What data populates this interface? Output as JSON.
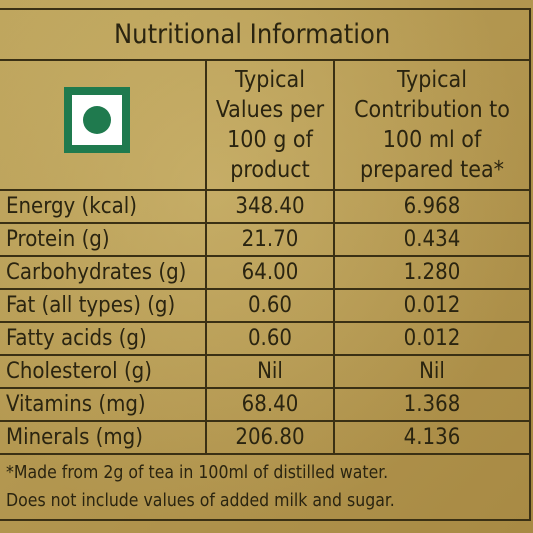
{
  "title": "Nutritional Information",
  "columns": {
    "typical_values": "Typical Values per 100 g of product",
    "typical_contribution": "Typical Contribution to 100 ml of prepared tea*"
  },
  "veg_mark_icon": "vegetarian-mark-icon",
  "colors": {
    "veg_green": "#1f7a4e",
    "background_gold": "#b59a52",
    "ink": "#2a2410"
  },
  "rows": [
    {
      "label": "Energy (kcal)",
      "per_100g": "348.40",
      "per_100ml": "6.968"
    },
    {
      "label": "Protein (g)",
      "per_100g": "21.70",
      "per_100ml": "0.434"
    },
    {
      "label": "Carbohydrates (g)",
      "per_100g": "64.00",
      "per_100ml": "1.280"
    },
    {
      "label": "Fat (all types) (g)",
      "per_100g": "0.60",
      "per_100ml": "0.012"
    },
    {
      "label": "Fatty acids (g)",
      "per_100g": "0.60",
      "per_100ml": "0.012"
    },
    {
      "label": "Cholesterol (g)",
      "per_100g": "Nil",
      "per_100ml": "Nil"
    },
    {
      "label": "Vitamins (mg)",
      "per_100g": "68.40",
      "per_100ml": "1.368"
    },
    {
      "label": "Minerals (mg)",
      "per_100g": "206.80",
      "per_100ml": "4.136"
    }
  ],
  "footnote": {
    "line1": "*Made from 2g of tea in 100ml of distilled water.",
    "line2": "Does not include values of added milk and sugar."
  }
}
